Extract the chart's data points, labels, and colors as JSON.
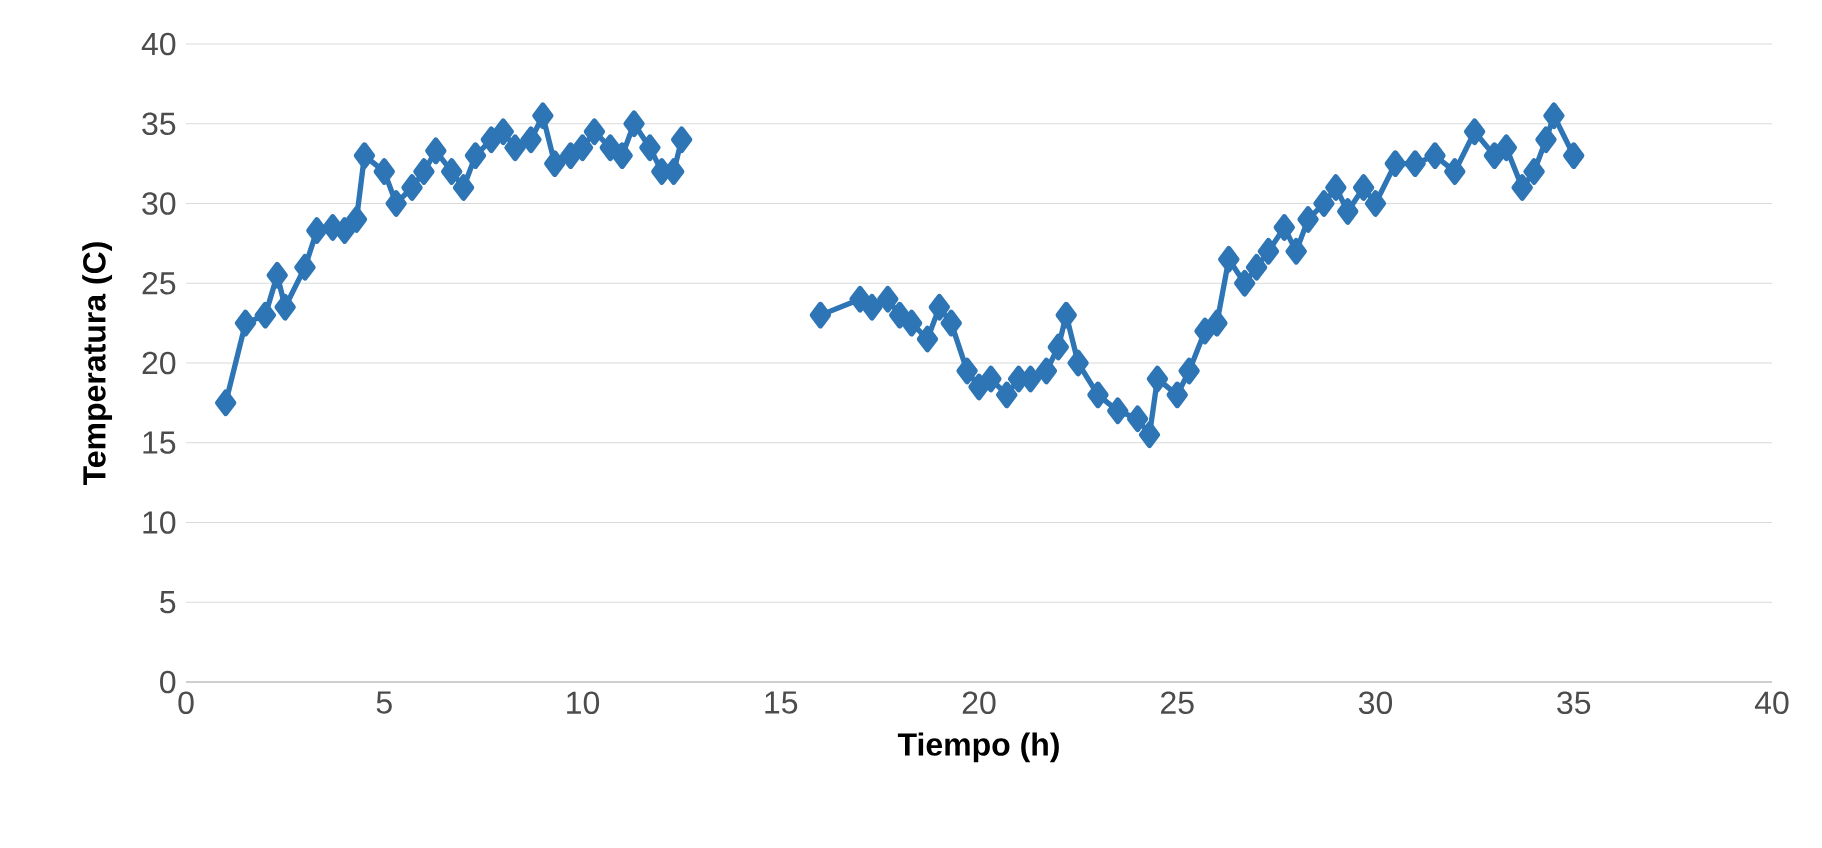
{
  "chart_data": {
    "type": "line",
    "xlabel": "Tiempo (h)",
    "ylabel": "Temperatura   (C)",
    "xlim": [
      0,
      40
    ],
    "xticks": [
      0,
      5,
      10,
      15,
      20,
      25,
      30,
      35,
      40
    ],
    "ylim": [
      0,
      40
    ],
    "yticks": [
      0,
      5,
      10,
      15,
      20,
      25,
      30,
      35,
      40
    ],
    "grid": "y",
    "marker": "diamond",
    "line_style": "solid",
    "x": [
      1,
      1.5,
      2,
      2.3,
      2.5,
      3,
      3.3,
      3.7,
      4,
      4.3,
      4.5,
      5,
      5.3,
      5.7,
      6,
      6.3,
      6.7,
      7,
      7.3,
      7.7,
      8,
      8.3,
      8.7,
      9,
      9.3,
      9.7,
      10,
      10.3,
      10.7,
      11,
      11.3,
      11.7,
      12,
      12.3,
      12.5,
      14,
      16,
      17,
      17.3,
      17.7,
      18,
      18.3,
      18.7,
      19,
      19.3,
      19.7,
      20,
      20.3,
      20.7,
      21,
      21.3,
      21.7,
      22,
      22.2,
      22.5,
      23,
      23.5,
      24,
      24.3,
      24.5,
      25,
      25.3,
      25.7,
      26,
      26.3,
      26.7,
      27,
      27.3,
      27.7,
      28,
      28.3,
      28.7,
      29,
      29.3,
      29.7,
      30,
      30.5,
      31,
      31.5,
      32,
      32.5,
      33,
      33.3,
      33.7,
      34,
      34.3,
      34.5,
      35
    ],
    "series": [
      {
        "color": "#2e75b6",
        "values": [
          17.5,
          22.5,
          23,
          25.5,
          23.5,
          26,
          28.3,
          28.5,
          28.3,
          29,
          33,
          32,
          30,
          31,
          32,
          33.3,
          32,
          31,
          33,
          34,
          34.5,
          33.5,
          34,
          35.5,
          32.5,
          33,
          33.5,
          34.5,
          33.5,
          33,
          35,
          33.5,
          32,
          32,
          34,
          null,
          23,
          24,
          23.5,
          24,
          23,
          22.5,
          21.5,
          23.5,
          22.5,
          19.5,
          18.5,
          19,
          18,
          19,
          19,
          19.5,
          21,
          23,
          20,
          18,
          17,
          16.5,
          15.5,
          19,
          18,
          19.5,
          22,
          22.5,
          26.5,
          25,
          26,
          27,
          28.5,
          27,
          29,
          30,
          31,
          29.5,
          31,
          30,
          32.5,
          32.5,
          33,
          32,
          34.5,
          33,
          33.5,
          31,
          32,
          34,
          35.5,
          33
        ]
      }
    ]
  }
}
